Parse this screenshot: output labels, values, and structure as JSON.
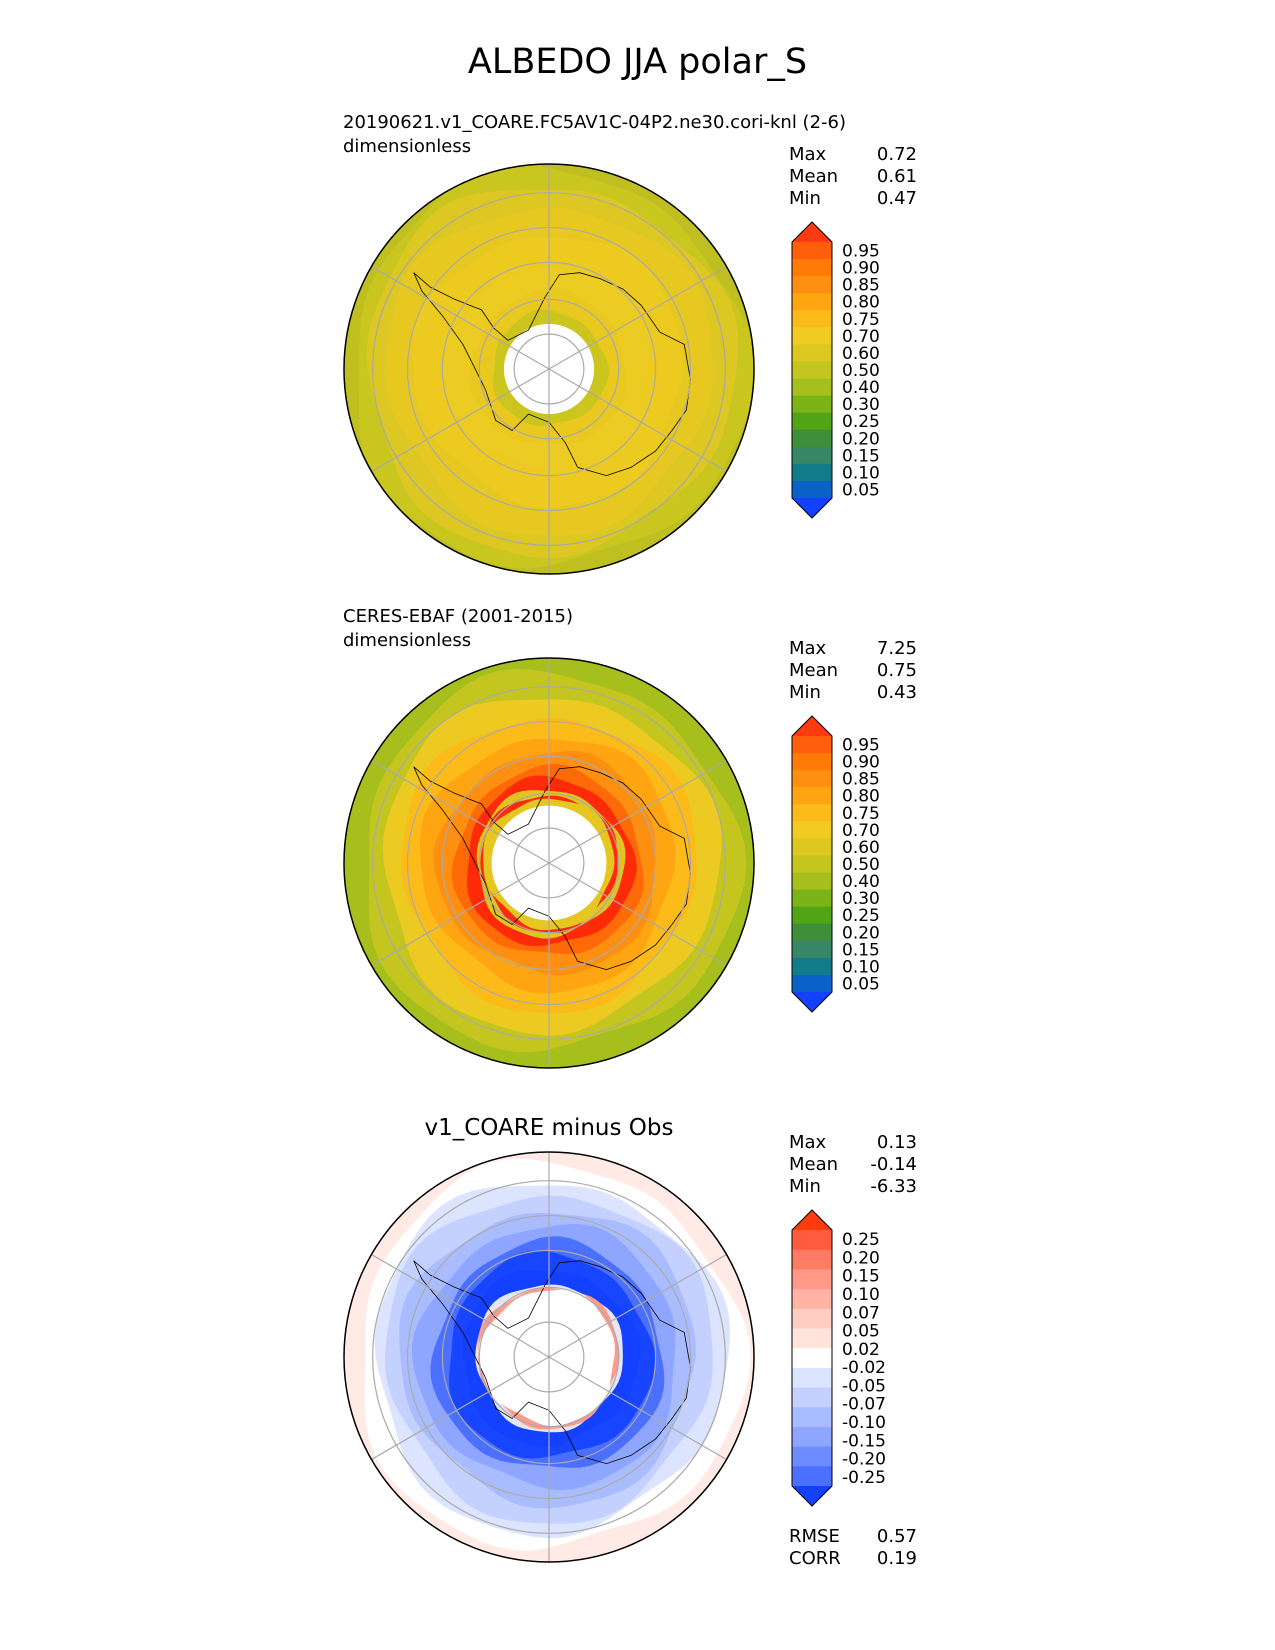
{
  "title": "ALBEDO JJA polar_S",
  "chart_data": [
    {
      "type": "heatmap",
      "projection": "south polar stereographic",
      "title": "20190621.v1_COARE.FC5AV1C-04P2.ne30.cori-knl (2-6)",
      "units": "dimensionless",
      "stats": [
        {
          "label": "Max",
          "value": "0.72"
        },
        {
          "label": "Mean",
          "value": "0.61"
        },
        {
          "label": "Min",
          "value": "0.47"
        }
      ],
      "colorbar": {
        "levels": [
          "0.95",
          "0.90",
          "0.85",
          "0.80",
          "0.75",
          "0.70",
          "0.60",
          "0.50",
          "0.40",
          "0.30",
          "0.25",
          "0.20",
          "0.15",
          "0.10",
          "0.05"
        ],
        "colors": [
          "#ff3a0e",
          "#ff5e0a",
          "#ff7a06",
          "#ff8f10",
          "#ffa512",
          "#fdbb1a",
          "#f1cb22",
          "#ddc81f",
          "#c4c51e",
          "#a6bf1d",
          "#7cb418",
          "#52a417",
          "#3f8f3a",
          "#398667",
          "#137c8b",
          "#0a62c8",
          "#1341ff"
        ],
        "extend": "both"
      },
      "field_rings": {
        "r": [
          1.0,
          0.97,
          0.9,
          0.8,
          0.66,
          0.5,
          0.38,
          0.28
        ],
        "colors": [
          "#bfbf22",
          "#c9c61f",
          "#dcc723",
          "#e6c820",
          "#edca20",
          "#eccb22",
          "#e9c81f",
          "#ccc51e"
        ]
      },
      "hole_radius": 0.22
    },
    {
      "type": "heatmap",
      "projection": "south polar stereographic",
      "title": "CERES-EBAF (2001-2015)",
      "units": "dimensionless",
      "stats": [
        {
          "label": "Max",
          "value": "7.25"
        },
        {
          "label": "Mean",
          "value": "0.75"
        },
        {
          "label": "Min",
          "value": "0.43"
        }
      ],
      "colorbar": {
        "levels": [
          "0.95",
          "0.90",
          "0.85",
          "0.80",
          "0.75",
          "0.70",
          "0.60",
          "0.50",
          "0.40",
          "0.30",
          "0.25",
          "0.20",
          "0.15",
          "0.10",
          "0.05"
        ],
        "colors": [
          "#ff3a0e",
          "#ff5e0a",
          "#ff7a06",
          "#ff8f10",
          "#ffa512",
          "#fdbb1a",
          "#f1cb22",
          "#ddc81f",
          "#c4c51e",
          "#a6bf1d",
          "#7cb418",
          "#52a417",
          "#3f8f3a",
          "#398667",
          "#137c8b",
          "#0a62c8",
          "#1341ff"
        ],
        "extend": "both"
      },
      "field_rings": {
        "r": [
          1.0,
          0.92,
          0.82,
          0.72,
          0.62,
          0.54,
          0.46,
          0.41,
          0.36,
          0.335,
          0.32
        ],
        "colors": [
          "#a6bf1d",
          "#c4c51e",
          "#ecca22",
          "#fdbb1a",
          "#ffa512",
          "#ff8f10",
          "#ff6a08",
          "#ff2a08",
          "#e0c41f",
          "#ff2a08",
          "#e6c722"
        ]
      },
      "hole_radius": 0.28
    },
    {
      "type": "heatmap",
      "projection": "south polar stereographic",
      "title": "v1_COARE minus Obs",
      "stats": [
        {
          "label": "Max",
          "value": "0.13"
        },
        {
          "label": "Mean",
          "value": "-0.14"
        },
        {
          "label": "Min",
          "value": "-6.33"
        }
      ],
      "metrics": [
        {
          "label": "RMSE",
          "value": "0.57"
        },
        {
          "label": "CORR",
          "value": "0.19"
        }
      ],
      "colorbar": {
        "levels": [
          "0.25",
          "0.20",
          "0.15",
          "0.10",
          "0.07",
          "0.05",
          "0.02",
          "-0.02",
          "-0.05",
          "-0.07",
          "-0.10",
          "-0.15",
          "-0.20",
          "-0.25"
        ],
        "colors": [
          "#ff3a0e",
          "#ff5b3c",
          "#ff7b63",
          "#ff9886",
          "#ffb3a4",
          "#ffcdc1",
          "#ffe3dc",
          "#ffffff",
          "#dce4ff",
          "#c4d1ff",
          "#a9bcff",
          "#8ea6ff",
          "#6e8cff",
          "#4b70ff",
          "#1341ff"
        ],
        "extend": "both"
      },
      "field_rings": {
        "r": [
          1.0,
          0.94,
          0.86,
          0.8,
          0.72,
          0.64,
          0.56,
          0.5,
          0.43,
          0.36,
          0.345,
          0.33
        ],
        "colors": [
          "#ffeae6",
          "#ffffff",
          "#dce4ff",
          "#c4d1ff",
          "#a9bcff",
          "#8ea6ff",
          "#4b70ff",
          "#1845ff",
          "#1341ff",
          "#e6e6f0",
          "#ff9a8c",
          "#ffffff"
        ]
      },
      "hole_radius": 0.31
    }
  ]
}
